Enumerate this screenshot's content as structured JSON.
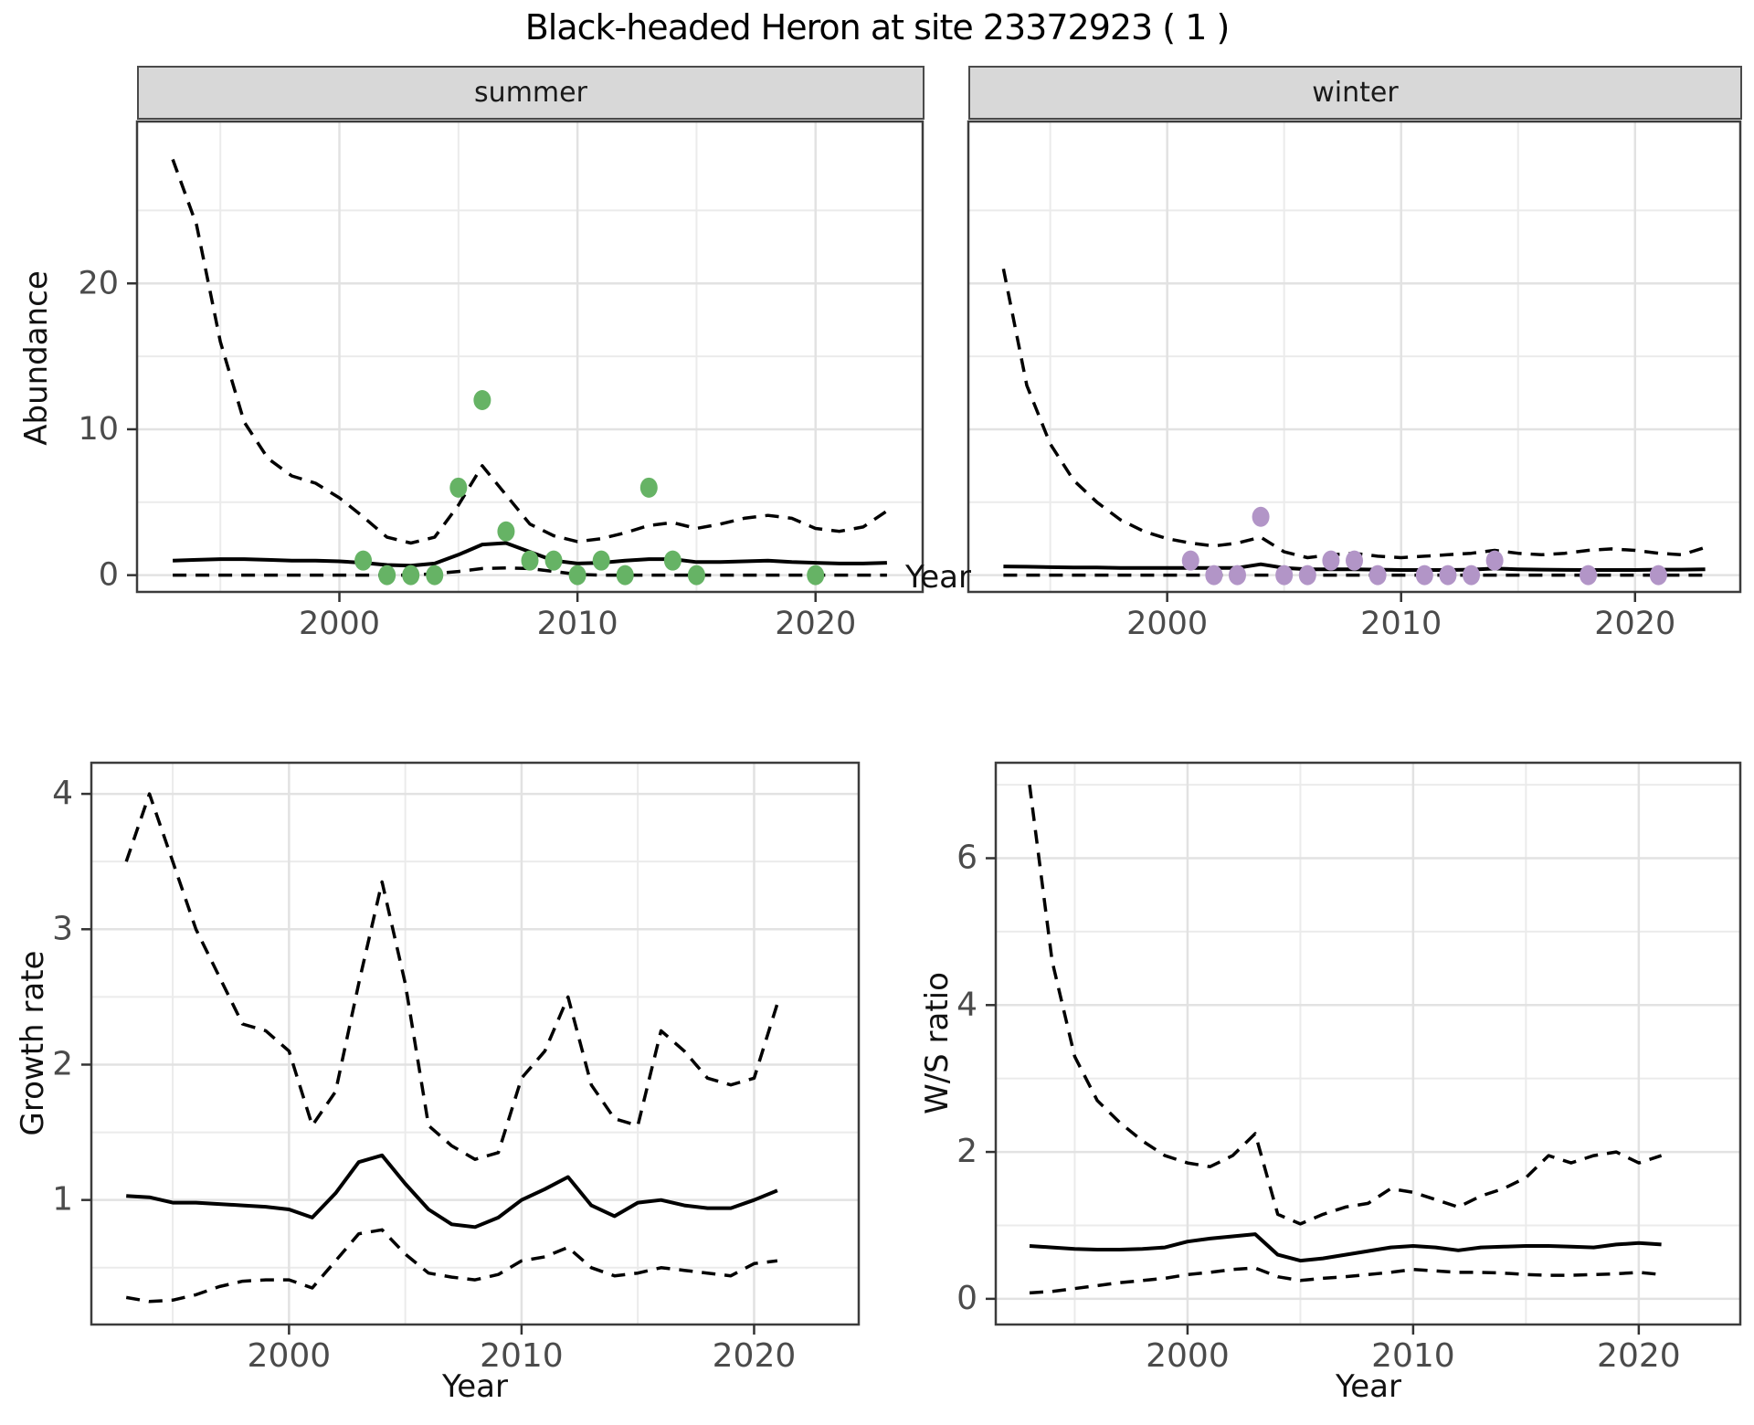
{
  "title": "Black-headed Heron at site 23372923 ( 1 )",
  "colors": {
    "summer_point": "#66b365",
    "winter_point": "#b295c7",
    "line": "#000000",
    "grid_major": "#e2e2e2",
    "grid_minor": "#ebebeb",
    "panel_border": "#3c3c3c",
    "strip_fill": "#d8d8d8",
    "tick_text": "#4b4b4b"
  },
  "chart_data": [
    {
      "id": "summer",
      "type": "line",
      "facet_label": "summer",
      "xlabel": "Year",
      "ylabel": "Abundance",
      "year_start": 1993,
      "axes": {
        "xlim": [
          1991.5,
          2024.5
        ],
        "ylim": [
          -1.15,
          31.1
        ],
        "x_ticks": [
          2000,
          2010,
          2020
        ],
        "x_minor": [
          1995,
          2005,
          2015
        ],
        "y_ticks": [
          0,
          10,
          20
        ],
        "y_minor": [
          5,
          15,
          25
        ]
      },
      "series": [
        {
          "name": "upper_ci",
          "style": "dashed",
          "values": [
            28.5,
            24,
            16,
            10.5,
            8,
            6.8,
            6.3,
            5.3,
            4,
            2.6,
            2.2,
            2.6,
            4.8,
            7.5,
            5.5,
            3.5,
            2.7,
            2.3,
            2.5,
            2.9,
            3.4,
            3.6,
            3.2,
            3.5,
            3.9,
            4.1,
            3.9,
            3.2,
            3,
            3.3,
            4.4
          ]
        },
        {
          "name": "median",
          "style": "solid",
          "values": [
            1,
            1.05,
            1.1,
            1.1,
            1.05,
            1,
            1,
            0.95,
            0.85,
            0.7,
            0.65,
            0.8,
            1.4,
            2.1,
            2.2,
            1.6,
            1,
            0.8,
            0.85,
            1,
            1.1,
            1.1,
            0.9,
            0.9,
            0.95,
            1,
            0.9,
            0.85,
            0.8,
            0.8,
            0.85
          ]
        },
        {
          "name": "lower_ci",
          "style": "dashed",
          "values": [
            0,
            0,
            0,
            0,
            0,
            0,
            0,
            0,
            0,
            0,
            0,
            0.1,
            0.25,
            0.45,
            0.5,
            0.45,
            0.25,
            0.05,
            0,
            0,
            0,
            0,
            0,
            0,
            0,
            0,
            0,
            0,
            0,
            0,
            0
          ]
        }
      ],
      "points": [
        [
          2001,
          1
        ],
        [
          2002,
          0
        ],
        [
          2003,
          0
        ],
        [
          2004,
          0
        ],
        [
          2005,
          6
        ],
        [
          2006,
          12
        ],
        [
          2007,
          3
        ],
        [
          2008,
          1
        ],
        [
          2009,
          1
        ],
        [
          2010,
          0
        ],
        [
          2011,
          1
        ],
        [
          2012,
          0
        ],
        [
          2013,
          6
        ],
        [
          2014,
          1
        ],
        [
          2015,
          0
        ],
        [
          2020,
          0
        ]
      ],
      "point_color": "#66b365"
    },
    {
      "id": "winter",
      "type": "line",
      "facet_label": "winter",
      "xlabel": "Year",
      "ylabel": "Abundance",
      "year_start": 1993,
      "axes": {
        "xlim": [
          1991.5,
          2024.5
        ],
        "ylim": [
          -1.15,
          31.1
        ],
        "x_ticks": [
          2000,
          2010,
          2020
        ],
        "x_minor": [
          1995,
          2005,
          2015
        ],
        "y_ticks": [
          0,
          10,
          20
        ],
        "y_minor": [
          5,
          15,
          25
        ]
      },
      "series": [
        {
          "name": "upper_ci",
          "style": "dashed",
          "values": [
            21,
            13,
            9,
            6.5,
            5,
            3.8,
            3,
            2.5,
            2.2,
            2,
            2.2,
            2.6,
            1.6,
            1.2,
            1.4,
            1.5,
            1.3,
            1.2,
            1.3,
            1.4,
            1.5,
            1.7,
            1.5,
            1.4,
            1.5,
            1.7,
            1.8,
            1.7,
            1.5,
            1.4,
            1.9
          ]
        },
        {
          "name": "median",
          "style": "solid",
          "values": [
            0.6,
            0.58,
            0.55,
            0.53,
            0.52,
            0.5,
            0.5,
            0.5,
            0.5,
            0.5,
            0.5,
            0.75,
            0.5,
            0.4,
            0.4,
            0.4,
            0.38,
            0.35,
            0.35,
            0.35,
            0.38,
            0.45,
            0.4,
            0.38,
            0.36,
            0.35,
            0.35,
            0.35,
            0.38,
            0.38,
            0.4
          ]
        },
        {
          "name": "lower_ci",
          "style": "dashed",
          "values": [
            0,
            0,
            0,
            0,
            0,
            0,
            0,
            0,
            0,
            0,
            0,
            0,
            0,
            0,
            0,
            0,
            0,
            0,
            0,
            0,
            0,
            0,
            0,
            0,
            0,
            0,
            0,
            0,
            0,
            0,
            0
          ]
        }
      ],
      "points": [
        [
          2001,
          1
        ],
        [
          2002,
          0
        ],
        [
          2003,
          0
        ],
        [
          2004,
          4
        ],
        [
          2005,
          0
        ],
        [
          2006,
          0
        ],
        [
          2007,
          1
        ],
        [
          2008,
          1
        ],
        [
          2009,
          0
        ],
        [
          2011,
          0
        ],
        [
          2012,
          0
        ],
        [
          2013,
          0
        ],
        [
          2014,
          1
        ],
        [
          2018,
          0
        ],
        [
          2021,
          0
        ]
      ],
      "point_color": "#b295c7"
    },
    {
      "id": "growth",
      "type": "line",
      "facet_label": "",
      "xlabel": "Year",
      "ylabel": "Growth rate",
      "year_start": 1993,
      "axes": {
        "xlim": [
          1991.5,
          2024.5
        ],
        "ylim": [
          0.08,
          4.23
        ],
        "x_ticks": [
          2000,
          2010,
          2020
        ],
        "x_minor": [
          1995,
          2005,
          2015
        ],
        "y_ticks": [
          1,
          2,
          3,
          4
        ],
        "y_minor": [
          0.5,
          1.5,
          2.5,
          3.5
        ]
      },
      "series": [
        {
          "name": "upper_ci",
          "style": "dashed",
          "values": [
            3.5,
            4,
            3.5,
            3,
            2.65,
            2.3,
            2.25,
            2.1,
            1.55,
            1.8,
            2.6,
            3.35,
            2.6,
            1.55,
            1.4,
            1.3,
            1.35,
            1.9,
            2.1,
            2.5,
            1.85,
            1.6,
            1.55,
            2.25,
            2.1,
            1.9,
            1.85,
            1.9,
            2.45
          ]
        },
        {
          "name": "median",
          "style": "solid",
          "values": [
            1.03,
            1.02,
            0.98,
            0.98,
            0.97,
            0.96,
            0.95,
            0.93,
            0.87,
            1.05,
            1.28,
            1.33,
            1.12,
            0.93,
            0.82,
            0.8,
            0.87,
            1,
            1.08,
            1.17,
            0.96,
            0.88,
            0.98,
            1,
            0.96,
            0.94,
            0.94,
            1,
            1.07
          ]
        },
        {
          "name": "lower_ci",
          "style": "dashed",
          "values": [
            0.28,
            0.25,
            0.26,
            0.3,
            0.36,
            0.4,
            0.41,
            0.41,
            0.35,
            0.55,
            0.75,
            0.78,
            0.6,
            0.46,
            0.43,
            0.41,
            0.45,
            0.55,
            0.58,
            0.65,
            0.5,
            0.44,
            0.46,
            0.5,
            0.48,
            0.46,
            0.44,
            0.53,
            0.55
          ]
        }
      ],
      "points": [],
      "point_color": "#000000"
    },
    {
      "id": "ws",
      "type": "line",
      "facet_label": "",
      "xlabel": "Year",
      "ylabel": "W/S ratio",
      "year_start": 1993,
      "axes": {
        "xlim": [
          1991.5,
          2024.5
        ],
        "ylim": [
          -0.35,
          7.3
        ],
        "x_ticks": [
          2000,
          2010,
          2020
        ],
        "x_minor": [
          1995,
          2005,
          2015
        ],
        "y_ticks": [
          0,
          2,
          4,
          6
        ],
        "y_minor": [
          1,
          3,
          5,
          7
        ]
      },
      "series": [
        {
          "name": "upper_ci",
          "style": "dashed",
          "values": [
            7,
            4.6,
            3.3,
            2.7,
            2.4,
            2.15,
            1.95,
            1.85,
            1.8,
            1.95,
            2.25,
            1.15,
            1.02,
            1.15,
            1.25,
            1.3,
            1.5,
            1.45,
            1.35,
            1.25,
            1.4,
            1.5,
            1.65,
            1.95,
            1.85,
            1.95,
            2,
            1.85,
            1.95
          ]
        },
        {
          "name": "median",
          "style": "solid",
          "values": [
            0.72,
            0.7,
            0.68,
            0.67,
            0.67,
            0.68,
            0.7,
            0.78,
            0.82,
            0.85,
            0.88,
            0.6,
            0.52,
            0.55,
            0.6,
            0.65,
            0.7,
            0.72,
            0.7,
            0.66,
            0.7,
            0.71,
            0.72,
            0.72,
            0.71,
            0.7,
            0.74,
            0.76,
            0.74
          ]
        },
        {
          "name": "lower_ci",
          "style": "dashed",
          "values": [
            0.08,
            0.1,
            0.14,
            0.18,
            0.22,
            0.25,
            0.28,
            0.33,
            0.36,
            0.4,
            0.42,
            0.3,
            0.25,
            0.28,
            0.3,
            0.33,
            0.36,
            0.4,
            0.38,
            0.36,
            0.36,
            0.35,
            0.33,
            0.32,
            0.32,
            0.33,
            0.34,
            0.36,
            0.33
          ]
        }
      ],
      "points": [],
      "point_color": "#000000"
    }
  ]
}
